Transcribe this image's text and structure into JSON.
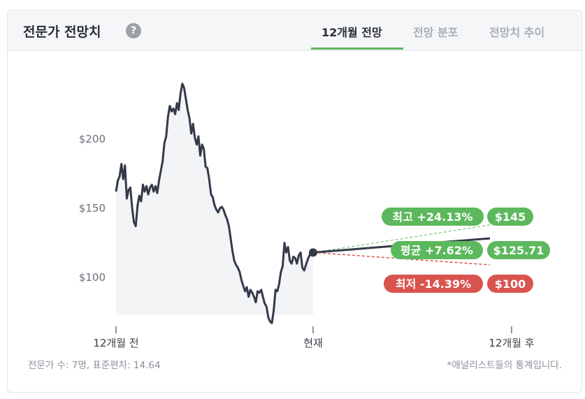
{
  "header": {
    "title": "전문가 전망치",
    "help_icon": "question-circle-icon",
    "tabs": [
      {
        "label": "12개월 전망",
        "active": true
      },
      {
        "label": "전망 분포",
        "active": false
      },
      {
        "label": "전망치 추이",
        "active": false
      }
    ]
  },
  "footer": {
    "left": "전문가 수: 7명, 표준편차: 14.64",
    "right": "*애널리스트들의 통계입니다."
  },
  "colors": {
    "accent": "#5cb85c",
    "high": "#5cb85c",
    "avg": "#5cb85c",
    "low": "#d9534f",
    "line": "#353a4a"
  },
  "chart_data": {
    "type": "line",
    "y_ticks": [
      "$200",
      "$150",
      "$100"
    ],
    "y_tick_values": [
      200,
      150,
      100
    ],
    "x_tick_labels": [
      "12개월 전",
      "현재",
      "12개월 후"
    ],
    "history": [
      162,
      170,
      173,
      182,
      171,
      181,
      157,
      163,
      165,
      150,
      140,
      137,
      152,
      159,
      155,
      167,
      162,
      166,
      160,
      165,
      167,
      162,
      166,
      161,
      170,
      177,
      184,
      197,
      202,
      216,
      224,
      220,
      222,
      218,
      226,
      221,
      233,
      240,
      237,
      229,
      221,
      215,
      204,
      211,
      201,
      196,
      202,
      188,
      196,
      193,
      180,
      179,
      171,
      160,
      158,
      152,
      149,
      147,
      150,
      151,
      149,
      145,
      142,
      137,
      128,
      119,
      112,
      109,
      107,
      104,
      98,
      94,
      90,
      93,
      86,
      91,
      89,
      86,
      82,
      90,
      89,
      91,
      86,
      81,
      79,
      71,
      68,
      67,
      76,
      91,
      90,
      95,
      104,
      108,
      125,
      118,
      122,
      112,
      110,
      115,
      114,
      110,
      116,
      118,
      107,
      105,
      109,
      113,
      116,
      120,
      118
    ],
    "forecast": {
      "high": {
        "label": "최고 +24.13%",
        "value_label": "$145",
        "value": 145
      },
      "average": {
        "label": "평균 +7.62%",
        "value_label": "$125.71",
        "value": 125.71
      },
      "low": {
        "label": "최저 -14.39%",
        "value_label": "$100",
        "value": 100
      }
    },
    "grid": false
  }
}
